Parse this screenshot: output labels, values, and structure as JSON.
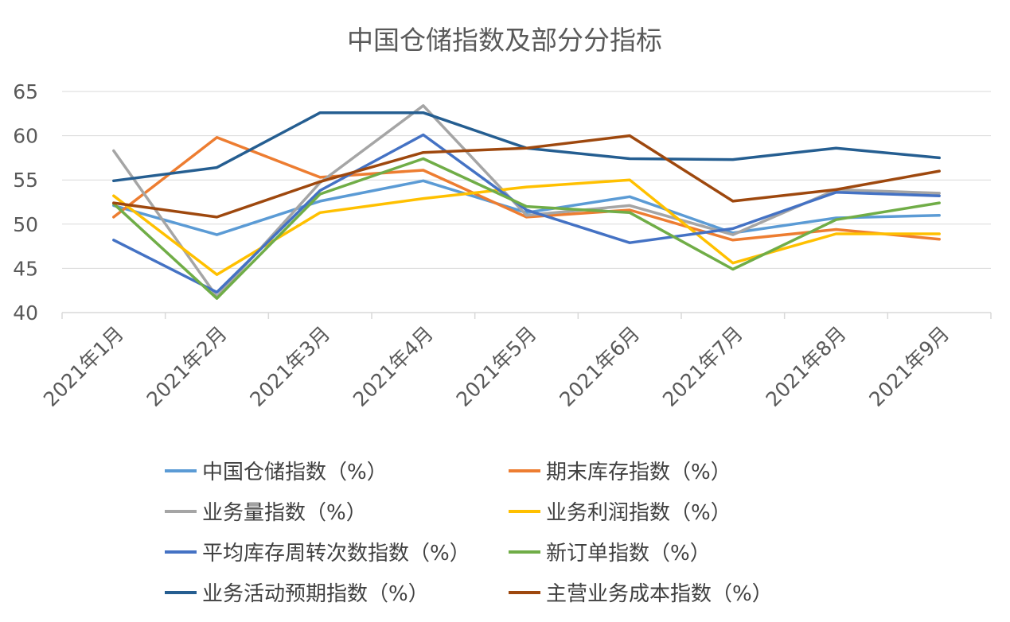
{
  "chart_data": {
    "type": "line",
    "title": "中国仓储指数及部分分指标",
    "xlabel": "",
    "ylabel": "",
    "ylim": [
      40,
      65
    ],
    "yticks": [
      "40",
      "45",
      "50",
      "55",
      "60",
      "65"
    ],
    "grid": true,
    "legend_position": "bottom",
    "categories": [
      "2021年1月",
      "2021年2月",
      "2021年3月",
      "2021年4月",
      "2021年5月",
      "2021年6月",
      "2021年7月",
      "2021年8月",
      "2021年9月"
    ],
    "series": [
      {
        "name": "中国仓储指数（%）",
        "color": "#5b9bd5",
        "values": [
          52.1,
          48.8,
          52.6,
          54.9,
          51.3,
          53.1,
          49.0,
          50.7,
          51.0
        ]
      },
      {
        "name": "期末库存指数（%）",
        "color": "#ed7d31",
        "values": [
          50.8,
          59.8,
          55.3,
          56.1,
          50.8,
          51.6,
          48.2,
          49.4,
          48.3
        ]
      },
      {
        "name": "业务量指数（%）",
        "color": "#a5a5a5",
        "values": [
          58.3,
          41.8,
          54.7,
          63.4,
          51.0,
          52.1,
          48.8,
          53.9,
          53.5
        ]
      },
      {
        "name": "业务利润指数（%）",
        "color": "#ffc000",
        "values": [
          53.2,
          44.3,
          51.3,
          52.9,
          54.2,
          55.0,
          45.6,
          48.9,
          48.9
        ]
      },
      {
        "name": "平均库存周转次数指数（%）",
        "color": "#4472c4",
        "values": [
          48.2,
          42.3,
          53.8,
          60.1,
          51.6,
          47.9,
          49.5,
          53.6,
          53.2
        ]
      },
      {
        "name": "新订单指数（%）",
        "color": "#70ad47",
        "values": [
          52.3,
          41.6,
          53.4,
          57.4,
          52.0,
          51.3,
          44.9,
          50.5,
          52.4
        ]
      },
      {
        "name": "业务活动预期指数（%）",
        "color": "#255e91",
        "values": [
          54.9,
          56.4,
          62.6,
          62.6,
          58.6,
          57.4,
          57.3,
          58.6,
          57.5
        ]
      },
      {
        "name": "主营业务成本指数（%）",
        "color": "#9e480e",
        "values": [
          52.4,
          50.8,
          54.8,
          58.1,
          58.6,
          60.0,
          52.6,
          53.9,
          56.0
        ]
      }
    ]
  }
}
